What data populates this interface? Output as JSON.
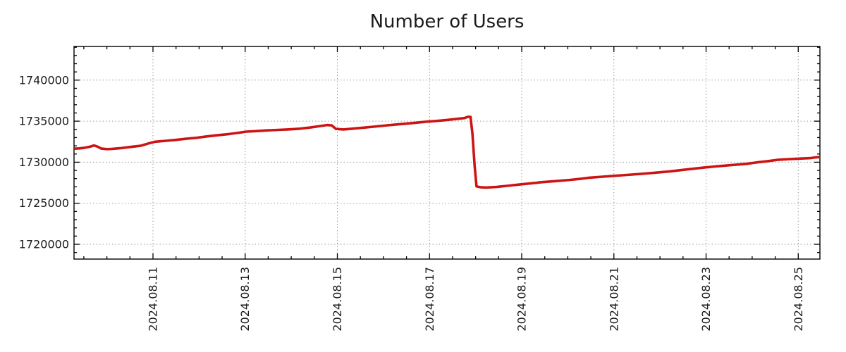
{
  "colors": {
    "line": "#cc1414",
    "grid": "#9a9a9a",
    "border": "#000000",
    "text": "#1b1b1b",
    "background": "#ffffff"
  },
  "chart_data": {
    "type": "line",
    "title": "Number of Users",
    "series_name": "users",
    "legend": "none",
    "grid": "dotted major gridlines, mirrored inward ticks on all borders",
    "x_axis": {
      "epoch": "2024-08-09 00:00",
      "unit": "days",
      "range_days": [
        0.287,
        16.47
      ],
      "minor_tick_interval_days": 0.5,
      "major_ticks": [
        {
          "day": 2,
          "label": "2024.08.11"
        },
        {
          "day": 4,
          "label": "2024.08.13"
        },
        {
          "day": 6,
          "label": "2024.08.15"
        },
        {
          "day": 8,
          "label": "2024.08.17"
        },
        {
          "day": 10,
          "label": "2024.08.19"
        },
        {
          "day": 12,
          "label": "2024.08.21"
        },
        {
          "day": 14,
          "label": "2024.08.23"
        },
        {
          "day": 16,
          "label": "2024.08.25"
        }
      ],
      "label_rotation_deg": -90
    },
    "y_axis": {
      "range": [
        1718200,
        1744100
      ],
      "minor_tick_interval": 1000,
      "major_ticks": [
        {
          "value": 1740000,
          "label": "1740000"
        },
        {
          "value": 1735000,
          "label": "1735000"
        },
        {
          "value": 1730000,
          "label": "1730000"
        },
        {
          "value": 1725000,
          "label": "1725000"
        },
        {
          "value": 1720000,
          "label": "1720000"
        }
      ]
    },
    "points": [
      [
        0.29,
        1731650
      ],
      [
        0.4,
        1731680
      ],
      [
        0.52,
        1731760
      ],
      [
        0.63,
        1731890
      ],
      [
        0.72,
        1732040
      ],
      [
        0.8,
        1731900
      ],
      [
        0.88,
        1731660
      ],
      [
        1.0,
        1731600
      ],
      [
        1.1,
        1731610
      ],
      [
        1.28,
        1731700
      ],
      [
        1.5,
        1731850
      ],
      [
        1.73,
        1732000
      ],
      [
        1.9,
        1732280
      ],
      [
        2.05,
        1732500
      ],
      [
        2.28,
        1732610
      ],
      [
        2.5,
        1732720
      ],
      [
        2.72,
        1732860
      ],
      [
        2.95,
        1732980
      ],
      [
        3.18,
        1733150
      ],
      [
        3.42,
        1733300
      ],
      [
        3.65,
        1733430
      ],
      [
        3.88,
        1733600
      ],
      [
        4.02,
        1733720
      ],
      [
        4.25,
        1733790
      ],
      [
        4.48,
        1733880
      ],
      [
        4.72,
        1733940
      ],
      [
        4.95,
        1734000
      ],
      [
        5.18,
        1734080
      ],
      [
        5.4,
        1734220
      ],
      [
        5.62,
        1734400
      ],
      [
        5.78,
        1734530
      ],
      [
        5.88,
        1734480
      ],
      [
        5.97,
        1734060
      ],
      [
        6.13,
        1733990
      ],
      [
        6.32,
        1734080
      ],
      [
        6.55,
        1734200
      ],
      [
        6.78,
        1734320
      ],
      [
        7.01,
        1734450
      ],
      [
        7.24,
        1734570
      ],
      [
        7.46,
        1734680
      ],
      [
        7.69,
        1734800
      ],
      [
        7.92,
        1734930
      ],
      [
        8.15,
        1735030
      ],
      [
        8.38,
        1735150
      ],
      [
        8.6,
        1735280
      ],
      [
        8.76,
        1735380
      ],
      [
        8.83,
        1735530
      ],
      [
        8.89,
        1735520
      ],
      [
        8.93,
        1733500
      ],
      [
        8.98,
        1729500
      ],
      [
        9.02,
        1727050
      ],
      [
        9.1,
        1726960
      ],
      [
        9.22,
        1726910
      ],
      [
        9.45,
        1726980
      ],
      [
        9.68,
        1727120
      ],
      [
        9.97,
        1727300
      ],
      [
        10.22,
        1727440
      ],
      [
        10.45,
        1727570
      ],
      [
        10.75,
        1727700
      ],
      [
        11.06,
        1727850
      ],
      [
        11.3,
        1727990
      ],
      [
        11.44,
        1728100
      ],
      [
        11.75,
        1728230
      ],
      [
        11.97,
        1728330
      ],
      [
        12.28,
        1728450
      ],
      [
        12.59,
        1728580
      ],
      [
        12.9,
        1728720
      ],
      [
        13.2,
        1728870
      ],
      [
        13.58,
        1729120
      ],
      [
        13.93,
        1729330
      ],
      [
        14.19,
        1729480
      ],
      [
        14.42,
        1729590
      ],
      [
        14.65,
        1729700
      ],
      [
        14.88,
        1729800
      ],
      [
        15.11,
        1729980
      ],
      [
        15.34,
        1730130
      ],
      [
        15.57,
        1730300
      ],
      [
        15.8,
        1730380
      ],
      [
        16.03,
        1730440
      ],
      [
        16.26,
        1730500
      ],
      [
        16.38,
        1730590
      ],
      [
        16.47,
        1730620
      ]
    ]
  }
}
